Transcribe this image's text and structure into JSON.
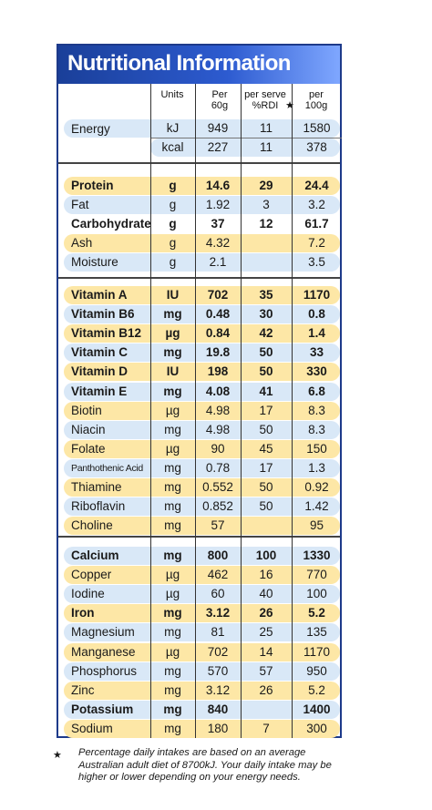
{
  "title": "Nutritional Information",
  "columns": {
    "units": "Units",
    "per60": "Per\n60g",
    "rdi": "per serve\n%RDI",
    "per100": "per\n100g"
  },
  "energy": {
    "label": "Energy",
    "rows": [
      {
        "unit": "kJ",
        "per60": "949",
        "rdi": "11",
        "per100": "1580"
      },
      {
        "unit": "kcal",
        "per60": "227",
        "rdi": "11",
        "per100": "378"
      }
    ]
  },
  "groups": [
    [
      {
        "name": "Protein",
        "unit": "g",
        "per60": "14.6",
        "rdi": "29",
        "per100": "24.4",
        "bold": true,
        "shade": "yellow"
      },
      {
        "name": "Fat",
        "unit": "g",
        "per60": "1.92",
        "rdi": "3",
        "per100": "3.2",
        "bold": false,
        "shade": "blue"
      },
      {
        "name": "Carbohydrate",
        "unit": "g",
        "per60": "37",
        "rdi": "12",
        "per100": "61.7",
        "bold": true,
        "shade": "none"
      },
      {
        "name": "Ash",
        "unit": "g",
        "per60": "4.32",
        "rdi": "",
        "per100": "7.2",
        "bold": false,
        "shade": "yellow"
      },
      {
        "name": "Moisture",
        "unit": "g",
        "per60": "2.1",
        "rdi": "",
        "per100": "3.5",
        "bold": false,
        "shade": "blue"
      }
    ],
    [
      {
        "name": "Vitamin A",
        "unit": "IU",
        "per60": "702",
        "rdi": "35",
        "per100": "1170",
        "bold": true,
        "shade": "yellow"
      },
      {
        "name": "Vitamin B6",
        "unit": "mg",
        "per60": "0.48",
        "rdi": "30",
        "per100": "0.8",
        "bold": true,
        "shade": "blue"
      },
      {
        "name": "Vitamin B12",
        "unit": "µg",
        "per60": "0.84",
        "rdi": "42",
        "per100": "1.4",
        "bold": true,
        "shade": "yellow"
      },
      {
        "name": "Vitamin C",
        "unit": "mg",
        "per60": "19.8",
        "rdi": "50",
        "per100": "33",
        "bold": true,
        "shade": "blue"
      },
      {
        "name": "Vitamin D",
        "unit": "IU",
        "per60": "198",
        "rdi": "50",
        "per100": "330",
        "bold": true,
        "shade": "yellow"
      },
      {
        "name": "Vitamin E",
        "unit": "mg",
        "per60": "4.08",
        "rdi": "41",
        "per100": "6.8",
        "bold": true,
        "shade": "blue"
      },
      {
        "name": "Biotin",
        "unit": "µg",
        "per60": "4.98",
        "rdi": "17",
        "per100": "8.3",
        "bold": false,
        "shade": "yellow"
      },
      {
        "name": "Niacin",
        "unit": "mg",
        "per60": "4.98",
        "rdi": "50",
        "per100": "8.3",
        "bold": false,
        "shade": "blue"
      },
      {
        "name": "Folate",
        "unit": "µg",
        "per60": "90",
        "rdi": "45",
        "per100": "150",
        "bold": false,
        "shade": "yellow"
      },
      {
        "name": "Panthothenic Acid",
        "unit": "mg",
        "per60": "0.78",
        "rdi": "17",
        "per100": "1.3",
        "bold": false,
        "shade": "blue",
        "small": true
      },
      {
        "name": "Thiamine",
        "unit": "mg",
        "per60": "0.552",
        "rdi": "50",
        "per100": "0.92",
        "bold": false,
        "shade": "yellow"
      },
      {
        "name": "Riboflavin",
        "unit": "mg",
        "per60": "0.852",
        "rdi": "50",
        "per100": "1.42",
        "bold": false,
        "shade": "blue"
      },
      {
        "name": "Choline",
        "unit": "mg",
        "per60": "57",
        "rdi": "",
        "per100": "95",
        "bold": false,
        "shade": "yellow"
      }
    ],
    [
      {
        "name": "Calcium",
        "unit": "mg",
        "per60": "800",
        "rdi": "100",
        "per100": "1330",
        "bold": true,
        "shade": "blue"
      },
      {
        "name": "Copper",
        "unit": "µg",
        "per60": "462",
        "rdi": "16",
        "per100": "770",
        "bold": false,
        "shade": "yellow"
      },
      {
        "name": "Iodine",
        "unit": "µg",
        "per60": "60",
        "rdi": "40",
        "per100": "100",
        "bold": false,
        "shade": "blue"
      },
      {
        "name": "Iron",
        "unit": "mg",
        "per60": "3.12",
        "rdi": "26",
        "per100": "5.2",
        "bold": true,
        "shade": "yellow"
      },
      {
        "name": "Magnesium",
        "unit": "mg",
        "per60": "81",
        "rdi": "25",
        "per100": "135",
        "bold": false,
        "shade": "blue"
      },
      {
        "name": "Manganese",
        "unit": "µg",
        "per60": "702",
        "rdi": "14",
        "per100": "1170",
        "bold": false,
        "shade": "yellow"
      },
      {
        "name": "Phosphorus",
        "unit": "mg",
        "per60": "570",
        "rdi": "57",
        "per100": "950",
        "bold": false,
        "shade": "blue"
      },
      {
        "name": "Zinc",
        "unit": "mg",
        "per60": "3.12",
        "rdi": "26",
        "per100": "5.2",
        "bold": false,
        "shade": "yellow"
      },
      {
        "name": "Potassium",
        "unit": "mg",
        "per60": "840",
        "rdi": "",
        "per100": "1400",
        "bold": true,
        "shade": "blue"
      },
      {
        "name": "Sodium",
        "unit": "mg",
        "per60": "180",
        "rdi": "7",
        "per100": "300",
        "bold": false,
        "shade": "yellow"
      }
    ]
  ],
  "footnote": {
    "star": "★",
    "text": "Percentage daily intakes are based on an average Australian adult diet of 8700kJ. Your daily intake may be higher or lower depending on your energy needs."
  }
}
